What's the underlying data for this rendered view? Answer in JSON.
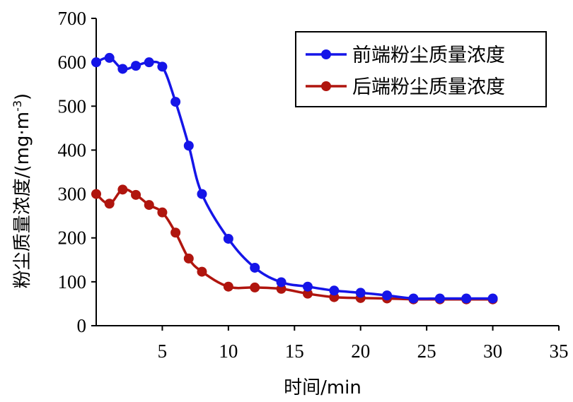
{
  "chart_data": {
    "type": "line",
    "xlabel": "时间/min",
    "ylabel_main": "粉尘质量浓度/(mg·m",
    "ylabel_sup": "-3",
    "ylabel_tail": ")",
    "xlim": [
      0,
      35
    ],
    "ylim": [
      0,
      700
    ],
    "xticks": [
      5,
      10,
      15,
      20,
      25,
      30,
      35
    ],
    "yticks": [
      0,
      100,
      200,
      300,
      400,
      500,
      600,
      700
    ],
    "grid": false,
    "legend_position": "top-right",
    "series": [
      {
        "name": "前端粉尘质量浓度",
        "color": "#1515e8",
        "x": [
          0,
          1,
          2,
          3,
          4,
          5,
          6,
          7,
          8,
          10,
          12,
          14,
          16,
          18,
          20,
          22,
          24,
          26,
          28,
          30
        ],
        "y": [
          600,
          610,
          585,
          592,
          600,
          590,
          510,
          410,
          300,
          198,
          132,
          99,
          89,
          80,
          75,
          69,
          62,
          62,
          62,
          62
        ]
      },
      {
        "name": "后端粉尘质量浓度",
        "color": "#b0150e",
        "x": [
          0,
          1,
          2,
          3,
          4,
          5,
          6,
          7,
          8,
          10,
          12,
          14,
          16,
          18,
          20,
          22,
          24,
          26,
          28,
          30
        ],
        "y": [
          300,
          278,
          310,
          298,
          275,
          258,
          212,
          153,
          123,
          89,
          87,
          84,
          73,
          65,
          63,
          62,
          60,
          60,
          60,
          60
        ]
      }
    ]
  }
}
